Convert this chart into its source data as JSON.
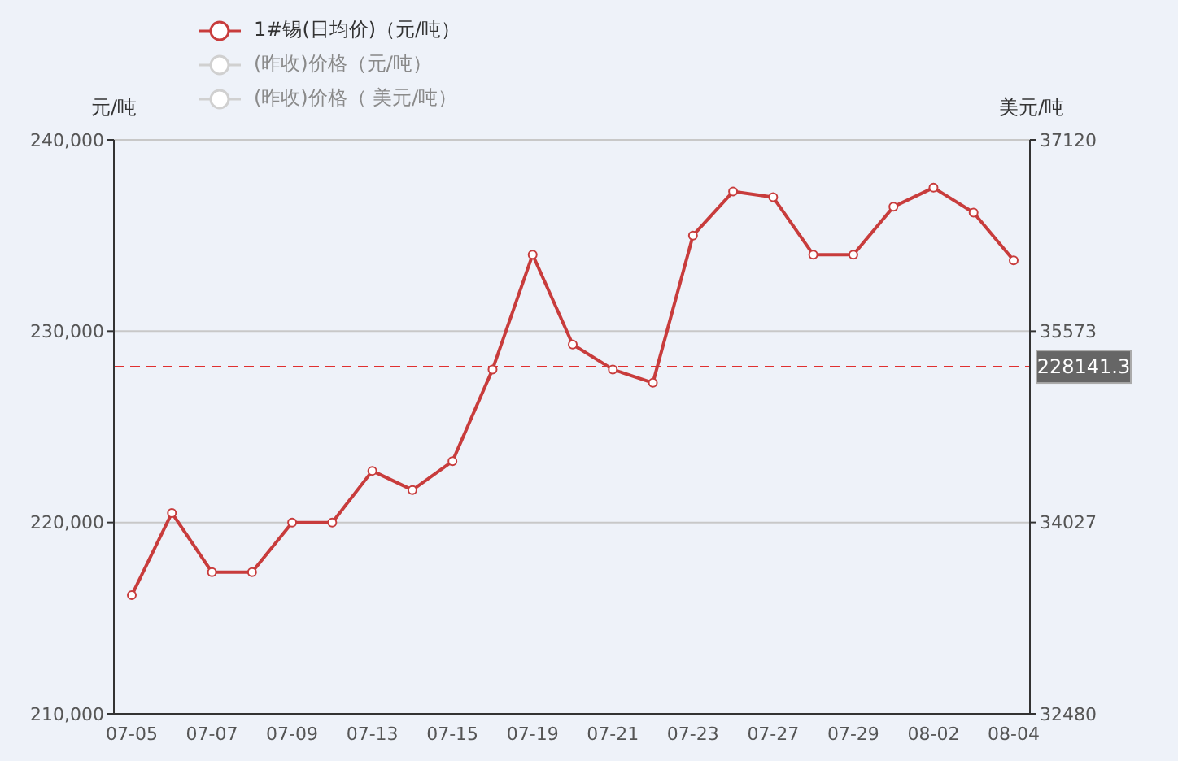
{
  "chart_data": {
    "type": "line",
    "categories": [
      "07-05",
      null,
      "07-07",
      null,
      "07-09",
      null,
      "07-13",
      null,
      "07-15",
      null,
      "07-19",
      null,
      "07-21",
      null,
      "07-23",
      null,
      "07-27",
      null,
      "07-29",
      null,
      "08-02",
      null,
      "08-04"
    ],
    "series": [
      {
        "name": "1#锡(日均价)（元/吨）",
        "color": "#c83c3c",
        "values": [
          216200,
          220500,
          217400,
          217400,
          220000,
          220000,
          222700,
          221700,
          223200,
          228000,
          234000,
          229300,
          228000,
          227300,
          235000,
          237300,
          237000,
          234000,
          234000,
          236500,
          237500,
          236200,
          233700
        ]
      },
      {
        "name": "(昨收)价格（元/吨）",
        "color": "#d0d0d0",
        "values": [
          null,
          null,
          null,
          null,
          null,
          null,
          null,
          null,
          null,
          null,
          null,
          null,
          null,
          null,
          null,
          null,
          null,
          null,
          null,
          null,
          null,
          null,
          null
        ]
      },
      {
        "name": "(昨收)价格（ 美元/吨）",
        "color": "#d0d0d0",
        "values": [
          null,
          null,
          null,
          null,
          null,
          null,
          null,
          null,
          null,
          null,
          null,
          null,
          null,
          null,
          null,
          null,
          null,
          null,
          null,
          null,
          null,
          null,
          null
        ]
      }
    ],
    "ylabel": "元/吨",
    "y2label": "美元/吨",
    "ylim": [
      210000,
      240000
    ],
    "yticks": [
      {
        "value": 210000,
        "label": "210,000"
      },
      {
        "value": 220000,
        "label": "220,000"
      },
      {
        "value": 230000,
        "label": "230,000"
      },
      {
        "value": 240000,
        "label": "240,000"
      }
    ],
    "y2lim": [
      32480,
      37120
    ],
    "y2ticks": [
      32480,
      34027,
      35573,
      37120
    ],
    "ref_lines": [
      {
        "axis": "y",
        "value": 228141.3,
        "label": "228141.3",
        "color": "#e03030",
        "line_style": "dashed"
      }
    ],
    "grid": "y",
    "legend": "top",
    "marker": "circle",
    "line_style": "solid"
  }
}
